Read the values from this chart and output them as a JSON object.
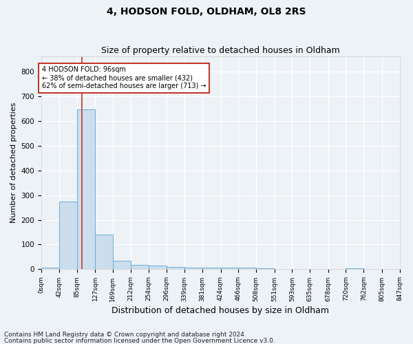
{
  "title1": "4, HODSON FOLD, OLDHAM, OL8 2RS",
  "title2": "Size of property relative to detached houses in Oldham",
  "xlabel": "Distribution of detached houses by size in Oldham",
  "ylabel": "Number of detached properties",
  "footnote1": "Contains HM Land Registry data © Crown copyright and database right 2024.",
  "footnote2": "Contains public sector information licensed under the Open Government Licence v3.0.",
  "bar_edges": [
    0,
    42,
    85,
    127,
    169,
    212,
    254,
    296,
    339,
    381,
    424,
    466,
    508,
    551,
    593,
    635,
    678,
    720,
    762,
    805,
    847
  ],
  "bar_heights": [
    7,
    275,
    645,
    140,
    35,
    18,
    15,
    10,
    7,
    7,
    7,
    7,
    5,
    0,
    0,
    0,
    0,
    5,
    0,
    0
  ],
  "bar_color": "#ccdded",
  "bar_edgecolor": "#6aaed6",
  "bar_linewidth": 0.7,
  "vline_x": 96,
  "vline_color": "#c0392b",
  "vline_linewidth": 1.2,
  "annotation_text": "4 HODSON FOLD: 96sqm\n← 38% of detached houses are smaller (432)\n62% of semi-detached houses are larger (713) →",
  "ylim": [
    0,
    860
  ],
  "yticks": [
    0,
    100,
    200,
    300,
    400,
    500,
    600,
    700,
    800
  ],
  "tick_labels": [
    "0sqm",
    "42sqm",
    "85sqm",
    "127sqm",
    "169sqm",
    "212sqm",
    "254sqm",
    "296sqm",
    "339sqm",
    "381sqm",
    "424sqm",
    "466sqm",
    "508sqm",
    "551sqm",
    "593sqm",
    "635sqm",
    "678sqm",
    "720sqm",
    "762sqm",
    "805sqm",
    "847sqm"
  ],
  "bg_color": "#edf2f7",
  "title_fontsize": 10,
  "subtitle_fontsize": 9,
  "xlabel_fontsize": 9,
  "ylabel_fontsize": 8,
  "footnote_fontsize": 6.5,
  "annotation_fontsize": 7,
  "tick_fontsize": 6.5,
  "ytick_fontsize": 7.5
}
